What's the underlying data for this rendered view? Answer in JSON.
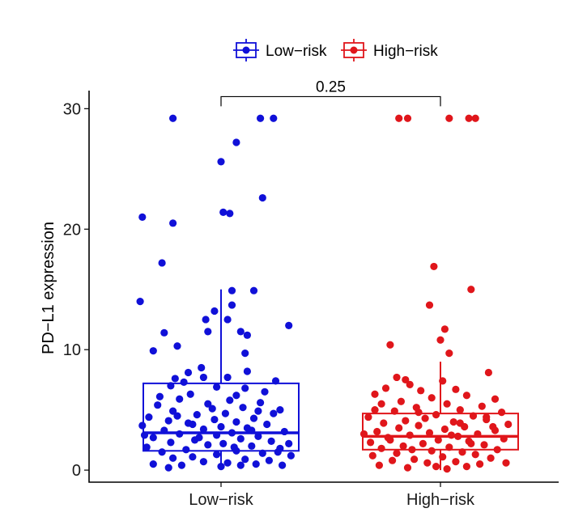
{
  "chart_data": {
    "type": "box",
    "title": "",
    "xlabel": "",
    "ylabel": "PD−L1 expression",
    "ylim": [
      -1,
      31.5
    ],
    "yticks": [
      0,
      10,
      20,
      30
    ],
    "categories": [
      "Low−risk",
      "High−risk"
    ],
    "legend": {
      "placement": "top",
      "entries": [
        {
          "label": "Low−risk",
          "color": "#1010d8"
        },
        {
          "label": "High−risk",
          "color": "#e0161b"
        }
      ]
    },
    "comparison": {
      "label": "0.25",
      "groups": [
        "Low−risk",
        "High−risk"
      ],
      "y": 31
    }
  },
  "series": [
    {
      "name": "Low−risk",
      "color": "#1010d8",
      "box": {
        "q1": 1.6,
        "median": 3.1,
        "q3": 7.2,
        "whisker_low": 0.1,
        "whisker_high": 15.0
      },
      "points": [
        [
          -0.22,
          29.2
        ],
        [
          0.18,
          29.2
        ],
        [
          0.24,
          29.2
        ],
        [
          0.07,
          27.2
        ],
        [
          0.0,
          25.6
        ],
        [
          0.19,
          22.6
        ],
        [
          -0.36,
          21.0
        ],
        [
          0.01,
          21.4
        ],
        [
          0.04,
          21.3
        ],
        [
          -0.22,
          20.5
        ],
        [
          -0.27,
          17.2
        ],
        [
          0.05,
          14.9
        ],
        [
          0.15,
          14.9
        ],
        [
          -0.37,
          14.0
        ],
        [
          0.05,
          13.7
        ],
        [
          -0.03,
          13.2
        ],
        [
          -0.07,
          12.5
        ],
        [
          0.03,
          12.5
        ],
        [
          0.31,
          12.0
        ],
        [
          0.09,
          11.5
        ],
        [
          0.12,
          11.2
        ],
        [
          -0.26,
          11.4
        ],
        [
          -0.06,
          11.5
        ],
        [
          -0.31,
          9.9
        ],
        [
          -0.2,
          10.3
        ],
        [
          0.11,
          9.7
        ],
        [
          -0.15,
          8.1
        ],
        [
          -0.09,
          8.5
        ],
        [
          0.12,
          8.2
        ],
        [
          -0.21,
          7.6
        ],
        [
          -0.08,
          7.7
        ],
        [
          0.03,
          7.7
        ],
        [
          -0.17,
          7.3
        ],
        [
          0.25,
          7.4
        ],
        [
          -0.23,
          7.0
        ],
        [
          0.11,
          6.8
        ],
        [
          -0.02,
          6.9
        ],
        [
          -0.14,
          6.3
        ],
        [
          0.07,
          6.2
        ],
        [
          -0.19,
          5.9
        ],
        [
          0.04,
          5.8
        ],
        [
          -0.06,
          5.5
        ],
        [
          0.18,
          5.6
        ],
        [
          -0.29,
          5.4
        ],
        [
          0.1,
          5.2
        ],
        [
          0.27,
          5.0
        ],
        [
          -0.22,
          4.9
        ],
        [
          0.02,
          4.7
        ],
        [
          0.24,
          4.7
        ],
        [
          -0.11,
          4.6
        ],
        [
          -0.33,
          4.4
        ],
        [
          0.15,
          4.3
        ],
        [
          -0.03,
          4.2
        ],
        [
          -0.24,
          4.1
        ],
        [
          0.07,
          4.0
        ],
        [
          -0.15,
          3.9
        ],
        [
          0.21,
          3.8
        ],
        [
          -0.36,
          3.7
        ],
        [
          0.0,
          3.6
        ],
        [
          0.12,
          3.5
        ],
        [
          -0.08,
          3.4
        ],
        [
          -0.26,
          3.3
        ],
        [
          0.29,
          3.2
        ],
        [
          0.05,
          3.1
        ],
        [
          -0.19,
          3.0
        ],
        [
          -0.02,
          2.9
        ],
        [
          0.17,
          2.8
        ],
        [
          -0.31,
          2.7
        ],
        [
          0.09,
          2.6
        ],
        [
          -0.12,
          2.5
        ],
        [
          0.23,
          2.4
        ],
        [
          -0.23,
          2.3
        ],
        [
          0.01,
          2.2
        ],
        [
          -0.06,
          2.1
        ],
        [
          0.14,
          2.0
        ],
        [
          -0.34,
          1.9
        ],
        [
          0.27,
          1.8
        ],
        [
          -0.16,
          1.7
        ],
        [
          0.07,
          1.6
        ],
        [
          -0.27,
          1.5
        ],
        [
          0.19,
          1.4
        ],
        [
          -0.02,
          1.3
        ],
        [
          0.32,
          1.2
        ],
        [
          -0.13,
          1.1
        ],
        [
          -0.22,
          1.0
        ],
        [
          0.11,
          0.9
        ],
        [
          0.22,
          0.8
        ],
        [
          -0.08,
          0.7
        ],
        [
          0.03,
          0.6
        ],
        [
          -0.31,
          0.5
        ],
        [
          0.16,
          0.5
        ],
        [
          -0.18,
          0.4
        ],
        [
          0.28,
          0.4
        ],
        [
          -0.24,
          0.2
        ],
        [
          0.0,
          0.3
        ],
        [
          0.09,
          0.4
        ],
        [
          -0.04,
          5.1
        ],
        [
          0.2,
          6.5
        ],
        [
          -0.13,
          3.8
        ],
        [
          0.31,
          2.2
        ],
        [
          -0.28,
          6.1
        ],
        [
          0.14,
          3.3
        ],
        [
          -0.1,
          2.7
        ],
        [
          0.26,
          1.5
        ],
        [
          -0.35,
          2.9
        ],
        [
          0.06,
          1.9
        ],
        [
          -0.2,
          4.5
        ],
        [
          0.17,
          4.9
        ]
      ]
    },
    {
      "name": "High−risk",
      "color": "#e0161b",
      "box": {
        "q1": 1.7,
        "median": 2.8,
        "q3": 4.7,
        "whisker_low": 0.0,
        "whisker_high": 9.0
      },
      "points": [
        [
          -0.19,
          29.2
        ],
        [
          -0.15,
          29.2
        ],
        [
          0.04,
          29.2
        ],
        [
          0.13,
          29.2
        ],
        [
          0.16,
          29.2
        ],
        [
          -0.03,
          16.9
        ],
        [
          0.14,
          15.0
        ],
        [
          -0.05,
          13.7
        ],
        [
          0.02,
          11.7
        ],
        [
          0.0,
          10.8
        ],
        [
          -0.23,
          10.4
        ],
        [
          0.04,
          9.7
        ],
        [
          0.22,
          8.1
        ],
        [
          -0.2,
          7.7
        ],
        [
          -0.16,
          7.5
        ],
        [
          -0.14,
          7.1
        ],
        [
          0.01,
          7.4
        ],
        [
          -0.25,
          6.8
        ],
        [
          0.07,
          6.7
        ],
        [
          -0.09,
          6.6
        ],
        [
          -0.3,
          6.3
        ],
        [
          0.12,
          6.2
        ],
        [
          -0.04,
          6.0
        ],
        [
          0.25,
          5.9
        ],
        [
          -0.18,
          5.7
        ],
        [
          0.03,
          5.5
        ],
        [
          -0.27,
          5.5
        ],
        [
          0.19,
          5.3
        ],
        [
          -0.11,
          5.2
        ],
        [
          0.09,
          5.0
        ],
        [
          -0.21,
          4.9
        ],
        [
          0.28,
          4.8
        ],
        [
          -0.02,
          4.6
        ],
        [
          0.15,
          4.5
        ],
        [
          -0.33,
          4.4
        ],
        [
          -0.07,
          4.3
        ],
        [
          0.21,
          4.2
        ],
        [
          -0.16,
          4.1
        ],
        [
          0.06,
          4.0
        ],
        [
          -0.26,
          3.9
        ],
        [
          0.31,
          3.8
        ],
        [
          -0.1,
          3.7
        ],
        [
          0.11,
          3.6
        ],
        [
          -0.19,
          3.5
        ],
        [
          0.02,
          3.4
        ],
        [
          0.25,
          3.3
        ],
        [
          -0.29,
          3.2
        ],
        [
          -0.05,
          3.1
        ],
        [
          0.17,
          3.0
        ],
        [
          -0.14,
          2.9
        ],
        [
          0.08,
          2.8
        ],
        [
          -0.24,
          2.7
        ],
        [
          0.29,
          2.6
        ],
        [
          -0.01,
          2.5
        ],
        [
          0.13,
          2.4
        ],
        [
          -0.32,
          2.3
        ],
        [
          -0.08,
          2.2
        ],
        [
          0.2,
          2.1
        ],
        [
          -0.17,
          2.0
        ],
        [
          0.04,
          1.9
        ],
        [
          -0.27,
          1.8
        ],
        [
          0.26,
          1.7
        ],
        [
          -0.04,
          1.6
        ],
        [
          0.1,
          1.5
        ],
        [
          -0.2,
          1.4
        ],
        [
          0.16,
          1.3
        ],
        [
          -0.31,
          1.2
        ],
        [
          0.01,
          1.1
        ],
        [
          0.23,
          1.0
        ],
        [
          -0.12,
          0.9
        ],
        [
          -0.22,
          0.8
        ],
        [
          0.07,
          0.7
        ],
        [
          -0.06,
          0.6
        ],
        [
          0.18,
          0.5
        ],
        [
          -0.28,
          0.4
        ],
        [
          0.12,
          0.3
        ],
        [
          -0.15,
          0.2
        ],
        [
          0.03,
          0.1
        ],
        [
          0.3,
          0.6
        ],
        [
          -0.02,
          0.3
        ],
        [
          -0.23,
          2.5
        ],
        [
          0.24,
          3.6
        ],
        [
          -0.1,
          4.8
        ],
        [
          0.14,
          2.2
        ],
        [
          -0.35,
          3.0
        ],
        [
          0.05,
          2.9
        ],
        [
          -0.13,
          1.7
        ],
        [
          0.21,
          4.4
        ],
        [
          -0.3,
          5.0
        ],
        [
          0.09,
          3.9
        ]
      ]
    }
  ]
}
